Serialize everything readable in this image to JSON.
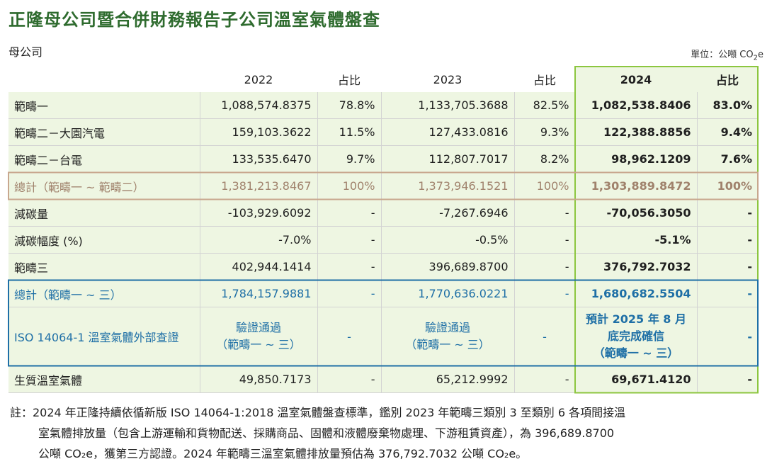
{
  "title": "正隆母公司暨合併財務報告子公司溫室氣體盤查",
  "subtitle": "母公司",
  "unit": {
    "prefix": "單位：公噸 CO",
    "sub": "2",
    "suffix": "e"
  },
  "headers": [
    "",
    "2022",
    "占比",
    "2023",
    "占比",
    "2024",
    "占比"
  ],
  "rows": [
    {
      "label": "範疇一",
      "v2022": "1,088,574.8375",
      "p2022": "78.8%",
      "v2023": "1,133,705.3688",
      "p2023": "82.5%",
      "v2024": "1,082,538.8406",
      "p2024": "83.0%"
    },
    {
      "label": "範疇二－大園汽電",
      "v2022": "159,103.3622",
      "p2022": "11.5%",
      "v2023": "127,433.0816",
      "p2023": "9.3%",
      "v2024": "122,388.8856",
      "p2024": "9.4%"
    },
    {
      "label": "範疇二－台電",
      "v2022": "133,535.6470",
      "p2022": "9.7%",
      "v2023": "112,807.7017",
      "p2023": "8.2%",
      "v2024": "98,962.1209",
      "p2024": "7.6%"
    },
    {
      "label": "總計（範疇一 ~ 範疇二）",
      "v2022": "1,381,213.8467",
      "p2022": "100%",
      "v2023": "1,373,946.1521",
      "p2023": "100%",
      "v2024": "1,303,889.8472",
      "p2024": "100%"
    },
    {
      "label": "減碳量",
      "v2022": "-103,929.6092",
      "p2022": "-",
      "v2023": "-7,267.6946",
      "p2023": "-",
      "v2024": "-70,056.3050",
      "p2024": "-"
    },
    {
      "label": "減碳幅度 (%)",
      "v2022": "-7.0%",
      "p2022": "-",
      "v2023": "-0.5%",
      "p2023": "-",
      "v2024": "-5.1%",
      "p2024": "-"
    },
    {
      "label": "範疇三",
      "v2022": "402,944.1414",
      "p2022": "-",
      "v2023": "396,689.8700",
      "p2023": "-",
      "v2024": "376,792.7032",
      "p2024": "-"
    },
    {
      "label": "總計（範疇一 ~ 三）",
      "v2022": "1,784,157.9881",
      "p2022": "-",
      "v2023": "1,770,636.0221",
      "p2023": "-",
      "v2024": "1,680,682.5504",
      "p2024": "-"
    },
    {
      "label": "ISO 14064-1 溫室氣體外部查證",
      "v2022": [
        "驗證通過",
        "（範疇一 ~ 三）"
      ],
      "p2022": "-",
      "v2023": [
        "驗證通過",
        "（範疇一 ~ 三）"
      ],
      "p2023": "-",
      "v2024": [
        "預計 2025 年 8 月",
        "底完成確信",
        "（範疇一 ~ 三）"
      ],
      "p2024": "-"
    },
    {
      "label": "生質溫室氣體",
      "v2022": "49,850.7173",
      "p2022": "-",
      "v2023": "65,212.9992",
      "p2023": "-",
      "v2024": "69,671.4120",
      "p2024": "-"
    }
  ],
  "note": {
    "line1": "註：2024 年正隆持續依循新版 ISO 14064-1:2018 溫室氣體盤查標準，鑑別 2023 年範疇三類別 3 至類別 6 各項間接溫",
    "line2": "室氣體排放量（包含上游運輸和貨物配送、採購商品、固體和液體廢棄物處理、下游租賃資產），為 396,689.8700",
    "line3": "公噸 CO₂e，獲第三方認證。2024 年範疇三溫室氣體排放量預估為 376,792.7032 公噸 CO₂e。"
  },
  "colors": {
    "title": "#2e6b2e",
    "highlight_bg": "#eef6e2",
    "highlight_border": "#8cc63f",
    "total1": "#a0826c",
    "total2": "#1e6fa6"
  }
}
